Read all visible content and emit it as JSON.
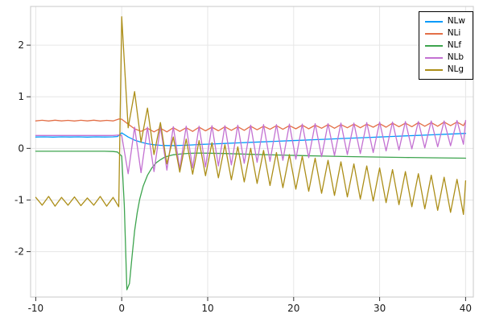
{
  "chart_data": {
    "type": "line",
    "title": "",
    "xlabel": "",
    "ylabel": "",
    "xlim": [
      -10.6,
      40.9
    ],
    "ylim": [
      -2.88,
      2.75
    ],
    "xticks": [
      -10,
      0,
      10,
      20,
      30,
      40
    ],
    "yticks": [
      -2,
      -1,
      0,
      1,
      2
    ],
    "grid": true,
    "legend_position": "top-right",
    "background_color": "#ffffff",
    "grid_color": "#e6e6e6",
    "frame_color": "#c9c9c9",
    "tick_color": "#333333",
    "series": [
      {
        "name": "NLw",
        "color": "#009AFA",
        "points": [
          [
            -10,
            0.22
          ],
          [
            -9,
            0.223
          ],
          [
            -8,
            0.219
          ],
          [
            -7,
            0.224
          ],
          [
            -6,
            0.22
          ],
          [
            -5,
            0.223
          ],
          [
            -4,
            0.219
          ],
          [
            -3,
            0.224
          ],
          [
            -2,
            0.221
          ],
          [
            -1,
            0.224
          ],
          [
            -0.5,
            0.23
          ],
          [
            0,
            0.3
          ],
          [
            0.75,
            0.22
          ],
          [
            1.5,
            0.16
          ],
          [
            2.25,
            0.12
          ],
          [
            3,
            0.09
          ],
          [
            3.75,
            0.07
          ],
          [
            4.5,
            0.06
          ],
          [
            5.25,
            0.055
          ],
          [
            6,
            0.055
          ],
          [
            6.75,
            0.058
          ],
          [
            7.5,
            0.062
          ],
          [
            8.25,
            0.068
          ],
          [
            9,
            0.075
          ],
          [
            10.5,
            0.085
          ],
          [
            12,
            0.096
          ],
          [
            13.5,
            0.106
          ],
          [
            15,
            0.117
          ],
          [
            16.5,
            0.127
          ],
          [
            18,
            0.137
          ],
          [
            19.5,
            0.148
          ],
          [
            21,
            0.158
          ],
          [
            22.5,
            0.169
          ],
          [
            24,
            0.179
          ],
          [
            25.5,
            0.19
          ],
          [
            27,
            0.2
          ],
          [
            28.5,
            0.21
          ],
          [
            30,
            0.221
          ],
          [
            31.5,
            0.231
          ],
          [
            33,
            0.242
          ],
          [
            34.5,
            0.252
          ],
          [
            36,
            0.262
          ],
          [
            37.5,
            0.273
          ],
          [
            39,
            0.283
          ],
          [
            40,
            0.29
          ]
        ]
      },
      {
        "name": "NLi",
        "color": "#E36F47",
        "points": [
          [
            -10,
            0.532
          ],
          [
            -9.25,
            0.545
          ],
          [
            -8.5,
            0.53
          ],
          [
            -7.75,
            0.546
          ],
          [
            -7,
            0.533
          ],
          [
            -6.25,
            0.544
          ],
          [
            -5.5,
            0.531
          ],
          [
            -4.75,
            0.545
          ],
          [
            -4,
            0.532
          ],
          [
            -3.25,
            0.546
          ],
          [
            -2.5,
            0.53
          ],
          [
            -1.75,
            0.544
          ],
          [
            -1,
            0.533
          ],
          [
            -0.3,
            0.57
          ],
          [
            0,
            0.565
          ],
          [
            0.75,
            0.47
          ],
          [
            1.5,
            0.38
          ],
          [
            2.25,
            0.33
          ],
          [
            3,
            0.39
          ],
          [
            3.75,
            0.32
          ],
          [
            4.5,
            0.39
          ],
          [
            5.25,
            0.32
          ],
          [
            6,
            0.4
          ],
          [
            6.75,
            0.33
          ],
          [
            7.5,
            0.4
          ],
          [
            8.25,
            0.33
          ],
          [
            9,
            0.41
          ],
          [
            9.75,
            0.34
          ],
          [
            10.5,
            0.41
          ],
          [
            11.25,
            0.34
          ],
          [
            12,
            0.42
          ],
          [
            12.75,
            0.35
          ],
          [
            13.5,
            0.42
          ],
          [
            14.25,
            0.35
          ],
          [
            15,
            0.43
          ],
          [
            15.75,
            0.36
          ],
          [
            16.5,
            0.43
          ],
          [
            17.25,
            0.37
          ],
          [
            18,
            0.44
          ],
          [
            18.75,
            0.37
          ],
          [
            19.5,
            0.44
          ],
          [
            20.25,
            0.38
          ],
          [
            21,
            0.45
          ],
          [
            21.75,
            0.38
          ],
          [
            22.5,
            0.45
          ],
          [
            23.25,
            0.39
          ],
          [
            24,
            0.46
          ],
          [
            24.75,
            0.39
          ],
          [
            25.5,
            0.46
          ],
          [
            26.25,
            0.4
          ],
          [
            27,
            0.47
          ],
          [
            27.75,
            0.4
          ],
          [
            28.5,
            0.47
          ],
          [
            29.25,
            0.41
          ],
          [
            30,
            0.48
          ],
          [
            30.75,
            0.41
          ],
          [
            31.5,
            0.49
          ],
          [
            32.25,
            0.42
          ],
          [
            33,
            0.49
          ],
          [
            33.75,
            0.42
          ],
          [
            34.5,
            0.5
          ],
          [
            35.25,
            0.43
          ],
          [
            36,
            0.5
          ],
          [
            36.75,
            0.43
          ],
          [
            37.5,
            0.51
          ],
          [
            38.25,
            0.44
          ],
          [
            39,
            0.51
          ],
          [
            39.75,
            0.44
          ],
          [
            40,
            0.52
          ]
        ]
      },
      {
        "name": "NLf",
        "color": "#3DA44E",
        "points": [
          [
            -10,
            -0.055
          ],
          [
            -8,
            -0.055
          ],
          [
            -6,
            -0.055
          ],
          [
            -4,
            -0.055
          ],
          [
            -2,
            -0.055
          ],
          [
            -1,
            -0.06
          ],
          [
            -0.5,
            -0.07
          ],
          [
            0,
            -0.15
          ],
          [
            0.3,
            -1.1
          ],
          [
            0.6,
            -2.74
          ],
          [
            0.9,
            -2.62
          ],
          [
            1.2,
            -2.1
          ],
          [
            1.5,
            -1.6
          ],
          [
            1.8,
            -1.25
          ],
          [
            2.1,
            -0.98
          ],
          [
            2.5,
            -0.73
          ],
          [
            3,
            -0.52
          ],
          [
            3.5,
            -0.38
          ],
          [
            4,
            -0.28
          ],
          [
            4.5,
            -0.22
          ],
          [
            5,
            -0.17
          ],
          [
            5.5,
            -0.145
          ],
          [
            6,
            -0.125
          ],
          [
            7,
            -0.105
          ],
          [
            8,
            -0.095
          ],
          [
            9,
            -0.092
          ],
          [
            10,
            -0.093
          ],
          [
            12,
            -0.1
          ],
          [
            15,
            -0.115
          ],
          [
            18,
            -0.128
          ],
          [
            21,
            -0.14
          ],
          [
            24,
            -0.15
          ],
          [
            27,
            -0.16
          ],
          [
            30,
            -0.168
          ],
          [
            33,
            -0.175
          ],
          [
            36,
            -0.182
          ],
          [
            40,
            -0.19
          ]
        ]
      },
      {
        "name": "NLb",
        "color": "#C371D2",
        "points": [
          [
            -10,
            0.25
          ],
          [
            -5,
            0.25
          ],
          [
            -1,
            0.25
          ],
          [
            -0.3,
            0.26
          ],
          [
            0,
            0.25
          ],
          [
            0.75,
            -0.49
          ],
          [
            1.5,
            0.41
          ],
          [
            2.25,
            -0.47
          ],
          [
            3,
            0.41
          ],
          [
            3.75,
            -0.45
          ],
          [
            4.5,
            0.42
          ],
          [
            5.25,
            -0.42
          ],
          [
            6,
            0.42
          ],
          [
            6.75,
            -0.4
          ],
          [
            7.5,
            0.43
          ],
          [
            8.25,
            -0.38
          ],
          [
            9,
            0.43
          ],
          [
            9.75,
            -0.36
          ],
          [
            10.5,
            0.44
          ],
          [
            11.25,
            -0.34
          ],
          [
            12,
            0.44
          ],
          [
            12.75,
            -0.32
          ],
          [
            13.5,
            0.45
          ],
          [
            14.25,
            -0.29
          ],
          [
            15,
            0.45
          ],
          [
            15.75,
            -0.27
          ],
          [
            16.5,
            0.46
          ],
          [
            17.25,
            -0.25
          ],
          [
            18,
            0.46
          ],
          [
            18.75,
            -0.23
          ],
          [
            19.5,
            0.47
          ],
          [
            20.25,
            -0.21
          ],
          [
            21,
            0.47
          ],
          [
            21.75,
            -0.18
          ],
          [
            22.5,
            0.48
          ],
          [
            23.25,
            -0.16
          ],
          [
            24,
            0.48
          ],
          [
            24.75,
            -0.14
          ],
          [
            25.5,
            0.49
          ],
          [
            26.25,
            -0.12
          ],
          [
            27,
            0.49
          ],
          [
            27.75,
            -0.1
          ],
          [
            28.5,
            0.5
          ],
          [
            29.25,
            -0.08
          ],
          [
            30,
            0.51
          ],
          [
            30.75,
            -0.05
          ],
          [
            31.5,
            0.51
          ],
          [
            32.25,
            -0.03
          ],
          [
            33,
            0.52
          ],
          [
            33.75,
            -0.01
          ],
          [
            34.5,
            0.52
          ],
          [
            35.25,
            0.01
          ],
          [
            36,
            0.53
          ],
          [
            36.75,
            0.03
          ],
          [
            37.5,
            0.53
          ],
          [
            38.25,
            0.05
          ],
          [
            39,
            0.54
          ],
          [
            39.75,
            0.08
          ],
          [
            40,
            0.54
          ]
        ]
      },
      {
        "name": "NLg",
        "color": "#AC8E18",
        "points": [
          [
            -10,
            -0.95
          ],
          [
            -9.25,
            -1.1
          ],
          [
            -8.5,
            -0.93
          ],
          [
            -7.75,
            -1.12
          ],
          [
            -7,
            -0.95
          ],
          [
            -6.25,
            -1.1
          ],
          [
            -5.5,
            -0.94
          ],
          [
            -4.75,
            -1.11
          ],
          [
            -4,
            -0.96
          ],
          [
            -3.25,
            -1.1
          ],
          [
            -2.5,
            -0.93
          ],
          [
            -1.75,
            -1.12
          ],
          [
            -1,
            -0.95
          ],
          [
            -0.35,
            -1.13
          ],
          [
            0,
            2.55
          ],
          [
            0.75,
            0.4
          ],
          [
            1.5,
            1.1
          ],
          [
            2.25,
            0.12
          ],
          [
            3,
            0.78
          ],
          [
            3.75,
            -0.12
          ],
          [
            4.5,
            0.5
          ],
          [
            5.25,
            -0.3
          ],
          [
            6,
            0.22
          ],
          [
            6.75,
            -0.46
          ],
          [
            7.5,
            0.18
          ],
          [
            8.25,
            -0.5
          ],
          [
            9,
            0.15
          ],
          [
            9.75,
            -0.53
          ],
          [
            10.5,
            0.11
          ],
          [
            11.25,
            -0.57
          ],
          [
            12,
            0.07
          ],
          [
            12.75,
            -0.61
          ],
          [
            13.5,
            0.03
          ],
          [
            14.25,
            -0.65
          ],
          [
            15,
            0
          ],
          [
            15.75,
            -0.68
          ],
          [
            16.5,
            -0.04
          ],
          [
            17.25,
            -0.72
          ],
          [
            18,
            -0.08
          ],
          [
            18.75,
            -0.76
          ],
          [
            19.5,
            -0.12
          ],
          [
            20.25,
            -0.79
          ],
          [
            21,
            -0.15
          ],
          [
            21.75,
            -0.83
          ],
          [
            22.5,
            -0.19
          ],
          [
            23.25,
            -0.87
          ],
          [
            24,
            -0.23
          ],
          [
            24.75,
            -0.91
          ],
          [
            25.5,
            -0.26
          ],
          [
            26.25,
            -0.94
          ],
          [
            27,
            -0.3
          ],
          [
            27.75,
            -0.98
          ],
          [
            28.5,
            -0.34
          ],
          [
            29.25,
            -1.02
          ],
          [
            30,
            -0.38
          ],
          [
            30.75,
            -1.05
          ],
          [
            31.5,
            -0.41
          ],
          [
            32.25,
            -1.09
          ],
          [
            33,
            -0.45
          ],
          [
            33.75,
            -1.13
          ],
          [
            34.5,
            -0.49
          ],
          [
            35.25,
            -1.17
          ],
          [
            36,
            -0.52
          ],
          [
            36.75,
            -1.2
          ],
          [
            37.5,
            -0.56
          ],
          [
            38.25,
            -1.24
          ],
          [
            39,
            -0.6
          ],
          [
            39.75,
            -1.28
          ],
          [
            40,
            -0.63
          ]
        ]
      }
    ]
  }
}
